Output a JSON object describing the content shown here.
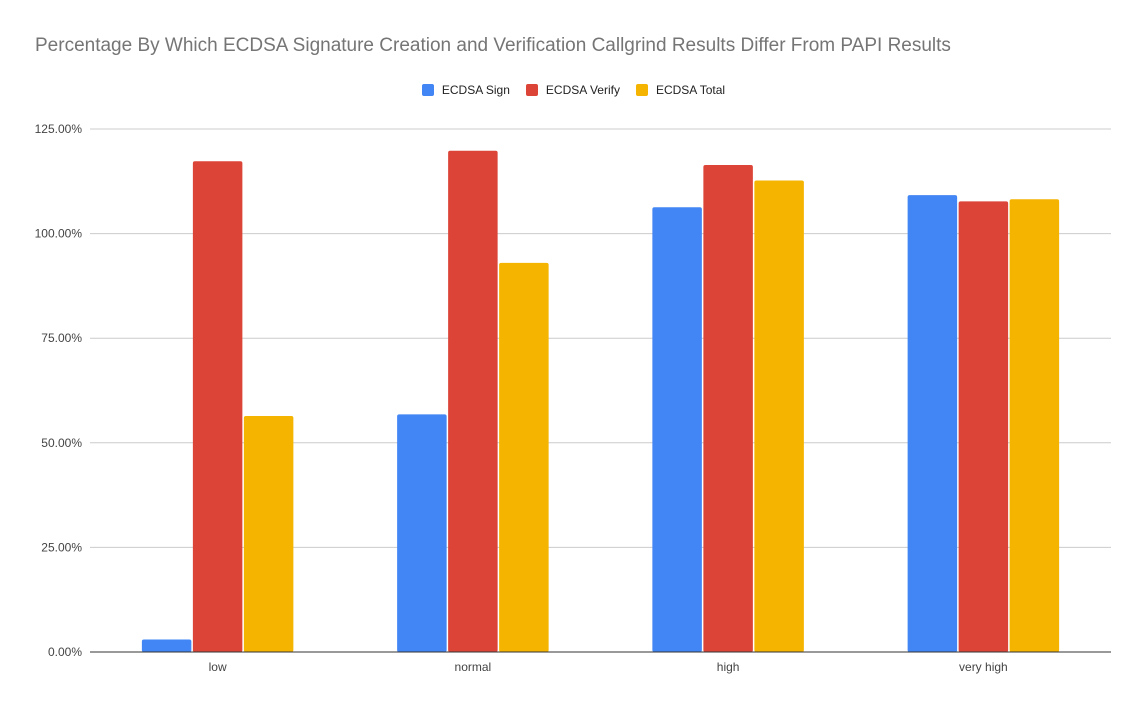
{
  "chart_data": {
    "type": "bar",
    "title": "Percentage By Which ECDSA Signature Creation and Verification Callgrind Results Differ From PAPI Results",
    "xlabel": "",
    "ylabel": "",
    "categories": [
      "low",
      "normal",
      "high",
      "very high"
    ],
    "series": [
      {
        "name": "ECDSA Sign",
        "color": "#4285f4",
        "values": [
          3.0,
          56.8,
          106.3,
          109.2
        ]
      },
      {
        "name": "ECDSA Verify",
        "color": "#db4437",
        "values": [
          117.3,
          119.8,
          116.4,
          107.7
        ]
      },
      {
        "name": "ECDSA Total",
        "color": "#f4b400",
        "values": [
          56.4,
          93.0,
          112.7,
          108.2
        ]
      }
    ],
    "ylim": [
      0,
      125
    ],
    "yticks": [
      0,
      25,
      50,
      75,
      100,
      125
    ],
    "ytick_labels": [
      "0.00%",
      "25.00%",
      "50.00%",
      "75.00%",
      "100.00%",
      "125.00%"
    ],
    "grid": true,
    "legend_position": "top-center"
  }
}
